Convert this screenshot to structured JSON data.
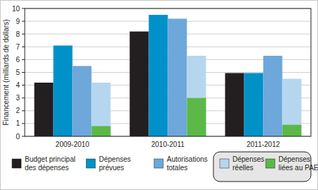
{
  "chart_data": {
    "type": "bar",
    "y_label": "Financement (milliards de dollars)",
    "categories": [
      "2009-2010",
      "2010-2011",
      "2011-2012"
    ],
    "series": [
      {
        "name": "Budget principal des dépenses",
        "color": "#231f20",
        "values": [
          4.2,
          8.2,
          4.95
        ]
      },
      {
        "name": "Dépenses prévues",
        "color": "#0091c9",
        "values": [
          7.1,
          9.5,
          4.95
        ]
      },
      {
        "name": "Autorisations totales",
        "color": "#6ea7d9",
        "values": [
          5.5,
          9.2,
          6.3
        ]
      },
      {
        "name": "Dépenses réelles",
        "color": "#b5d6ef",
        "values": [
          4.2,
          6.3,
          4.5
        ]
      },
      {
        "name": "Dépenses liées au PAE",
        "color": "#5cb847",
        "values": [
          0.8,
          3.0,
          0.9
        ]
      }
    ],
    "ylim": [
      0,
      10
    ],
    "yticks": [
      0,
      1,
      2,
      3,
      4,
      5,
      6,
      7,
      8,
      9,
      10
    ],
    "grid": true,
    "stacked": false,
    "legend": "bottom"
  }
}
